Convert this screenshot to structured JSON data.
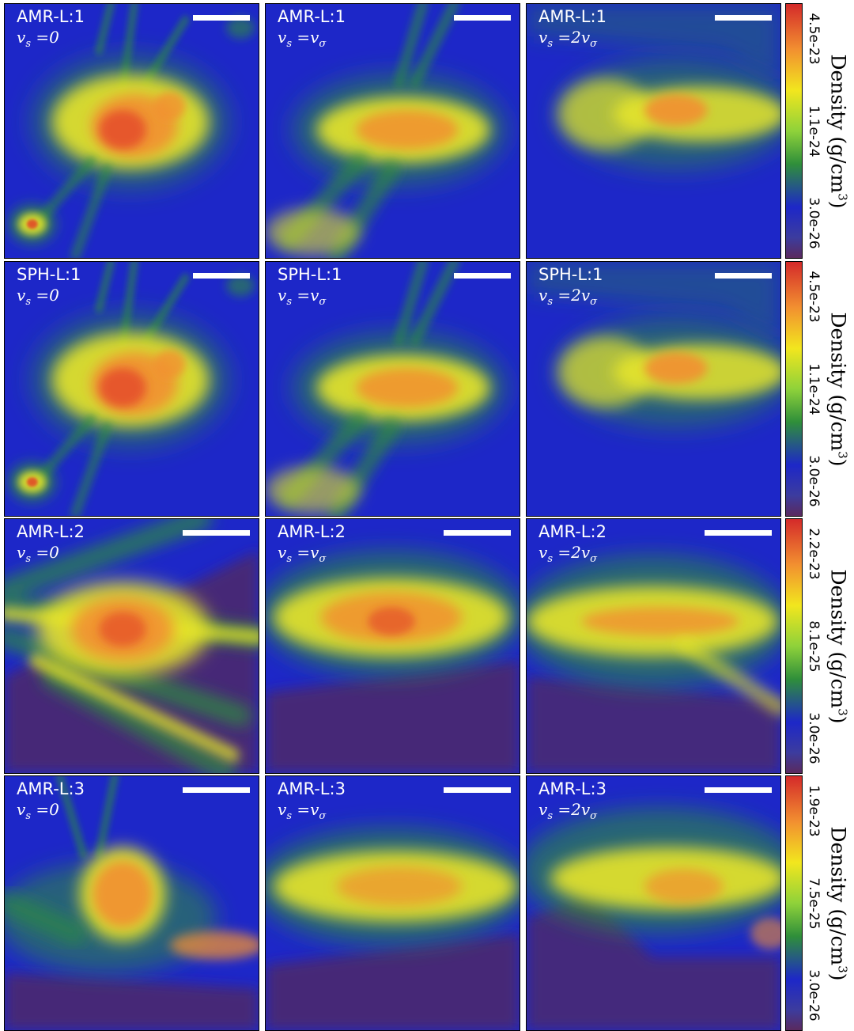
{
  "rows": [
    {
      "panels": [
        {
          "label": "AMR-L:1",
          "vs": "0",
          "variant": "a1"
        },
        {
          "label": "AMR-L:1",
          "vs": "v_sigma",
          "variant": "a2"
        },
        {
          "label": "AMR-L:1",
          "vs": "2v_sigma",
          "variant": "a3"
        }
      ],
      "colorbar": {
        "ticks": [
          "4.5e-23",
          "1.1e-24",
          "3.0e-26"
        ]
      }
    },
    {
      "panels": [
        {
          "label": "SPH-L:1",
          "vs": "0",
          "variant": "a1"
        },
        {
          "label": "SPH-L:1",
          "vs": "v_sigma",
          "variant": "a2"
        },
        {
          "label": "SPH-L:1",
          "vs": "2v_sigma",
          "variant": "a3"
        }
      ],
      "colorbar": {
        "ticks": [
          "4.5e-23",
          "1.1e-24",
          "3.0e-26"
        ]
      }
    },
    {
      "panels": [
        {
          "label": "AMR-L:2",
          "vs": "0",
          "variant": "b1"
        },
        {
          "label": "AMR-L:2",
          "vs": "v_sigma",
          "variant": "b2"
        },
        {
          "label": "AMR-L:2",
          "vs": "2v_sigma",
          "variant": "b3"
        }
      ],
      "colorbar": {
        "ticks": [
          "2.2e-23",
          "8.1e-25",
          "3.0e-26"
        ]
      }
    },
    {
      "panels": [
        {
          "label": "AMR-L:3",
          "vs": "0",
          "variant": "c1"
        },
        {
          "label": "AMR-L:3",
          "vs": "v_sigma",
          "variant": "c2"
        },
        {
          "label": "AMR-L:3",
          "vs": "2v_sigma",
          "variant": "c3"
        }
      ],
      "colorbar": {
        "ticks": [
          "1.9e-23",
          "7.5e-25",
          "3.0e-26"
        ]
      }
    }
  ],
  "colorbar_title": "Density",
  "colorbar_unit": "(g/cm",
  "colorbar_unit_exp": "3",
  "colorbar_unit_close": ")",
  "colors": {
    "background": "#1d27c8",
    "low": "#4a2a6e",
    "green": "#2f8f3a",
    "yellow": "#e8e628",
    "orange": "#f29030",
    "red": "#e23a28"
  }
}
